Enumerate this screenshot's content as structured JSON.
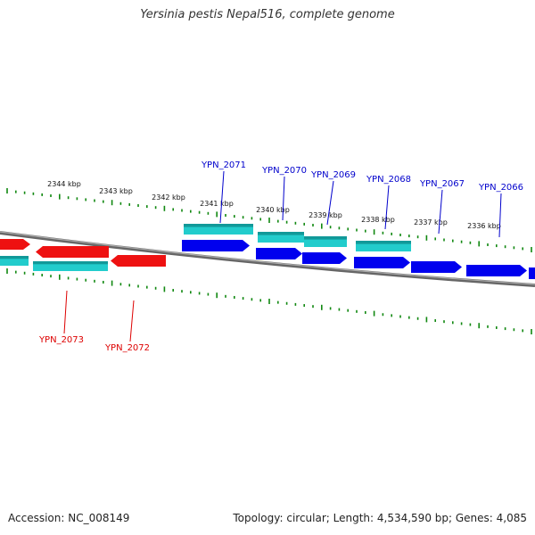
{
  "title": "Yersinia pestis Nepal516, complete genome",
  "accession": "Accession: NC_008149",
  "summary": "Topology: circular; Length: 4,534,590 bp; Genes: 4,085",
  "colors": {
    "backbone": "#888888",
    "forward_gene": "#ee1111",
    "reverse_gene": "#0000ee",
    "cds": "#22cccc",
    "tick": "#118811",
    "forward_label": "#dd0000",
    "reverse_label": "#0000cc"
  },
  "ruler_ticks": [
    "2344 kbp",
    "2343 kbp",
    "2342 kbp",
    "2341 kbp",
    "2340 kbp",
    "2339 kbp",
    "2338 kbp",
    "2337 kbp",
    "2336 kbp"
  ],
  "reverse_genes": [
    "YPN_2071",
    "YPN_2070",
    "YPN_2069",
    "YPN_2068",
    "YPN_2067",
    "YPN_2066"
  ],
  "forward_genes": [
    "YPN_2073",
    "YPN_2072"
  ]
}
